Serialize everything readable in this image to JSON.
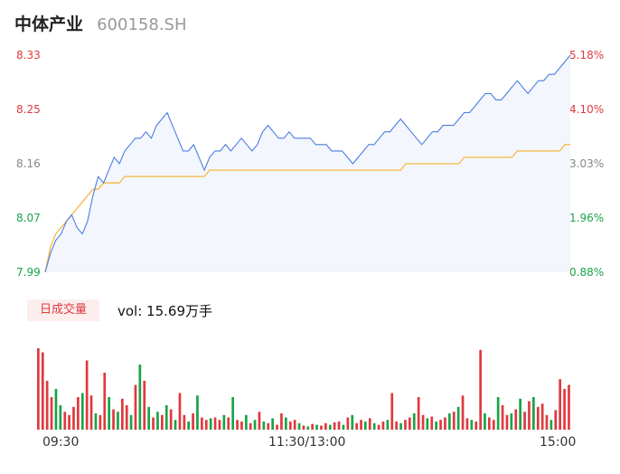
{
  "header": {
    "name": "中体产业",
    "code": "600158.SH"
  },
  "volume_panel": {
    "tab_label": "日成交量",
    "vol_label": "vol: 15.69万手"
  },
  "colors": {
    "price": "#4a7de0",
    "avg": "#f5b942",
    "up": "#e0393e",
    "down": "#1aa34a",
    "neutral": "#888888",
    "fill": "#f3f6fd"
  },
  "chart_data": [
    {
      "type": "line",
      "title": "",
      "ylim": [
        7.99,
        8.33
      ],
      "y_ticks_left": [
        "8.33",
        "8.25",
        "8.16",
        "8.07",
        "7.99"
      ],
      "y_ticks_right": [
        "5.18%",
        "4.10%",
        "3.03%",
        "1.96%",
        "0.88%"
      ],
      "x_ticks": [
        "09:30",
        "11:30/13:00",
        "15:00"
      ],
      "series": [
        {
          "values": [
            7.99,
            8.02,
            8.04,
            8.05,
            8.07,
            8.08,
            8.06,
            8.05,
            8.07,
            8.11,
            8.14,
            8.13,
            8.15,
            8.17,
            8.16,
            8.18,
            8.19,
            8.2,
            8.2,
            8.21,
            8.2,
            8.22,
            8.23,
            8.24,
            8.22,
            8.2,
            8.18,
            8.18,
            8.19,
            8.17,
            8.15,
            8.17,
            8.18,
            8.18,
            8.19,
            8.18,
            8.19,
            8.2,
            8.19,
            8.18,
            8.19,
            8.21,
            8.22,
            8.21,
            8.2,
            8.2,
            8.21,
            8.2,
            8.2,
            8.2,
            8.2,
            8.19,
            8.19,
            8.19,
            8.18,
            8.18,
            8.18,
            8.17,
            8.16,
            8.17,
            8.18,
            8.19,
            8.19,
            8.2,
            8.21,
            8.21,
            8.22,
            8.23,
            8.22,
            8.21,
            8.2,
            8.19,
            8.2,
            8.21,
            8.21,
            8.22,
            8.22,
            8.22,
            8.23,
            8.24,
            8.24,
            8.25,
            8.26,
            8.27,
            8.27,
            8.26,
            8.26,
            8.27,
            8.28,
            8.29,
            8.28,
            8.27,
            8.28,
            8.29,
            8.29,
            8.3,
            8.3,
            8.31,
            8.32,
            8.33
          ]
        },
        {
          "values": [
            7.99,
            8.03,
            8.05,
            8.06,
            8.07,
            8.08,
            8.09,
            8.1,
            8.11,
            8.12,
            8.12,
            8.13,
            8.13,
            8.13,
            8.13,
            8.14,
            8.14,
            8.14,
            8.14,
            8.14,
            8.14,
            8.14,
            8.14,
            8.14,
            8.14,
            8.14,
            8.14,
            8.14,
            8.14,
            8.14,
            8.14,
            8.15,
            8.15,
            8.15,
            8.15,
            8.15,
            8.15,
            8.15,
            8.15,
            8.15,
            8.15,
            8.15,
            8.15,
            8.15,
            8.15,
            8.15,
            8.15,
            8.15,
            8.15,
            8.15,
            8.15,
            8.15,
            8.15,
            8.15,
            8.15,
            8.15,
            8.15,
            8.15,
            8.15,
            8.15,
            8.15,
            8.15,
            8.15,
            8.15,
            8.15,
            8.15,
            8.15,
            8.15,
            8.16,
            8.16,
            8.16,
            8.16,
            8.16,
            8.16,
            8.16,
            8.16,
            8.16,
            8.16,
            8.16,
            8.17,
            8.17,
            8.17,
            8.17,
            8.17,
            8.17,
            8.17,
            8.17,
            8.17,
            8.17,
            8.18,
            8.18,
            8.18,
            8.18,
            8.18,
            8.18,
            8.18,
            8.18,
            8.18,
            8.19,
            8.19
          ]
        }
      ]
    },
    {
      "type": "bar",
      "title": "",
      "values": [
        100,
        95,
        60,
        40,
        50,
        30,
        22,
        18,
        28,
        40,
        45,
        85,
        42,
        20,
        18,
        70,
        40,
        25,
        22,
        38,
        30,
        18,
        55,
        80,
        60,
        28,
        15,
        22,
        18,
        30,
        25,
        12,
        45,
        18,
        10,
        20,
        42,
        15,
        12,
        14,
        15,
        12,
        18,
        15,
        40,
        12,
        10,
        18,
        8,
        12,
        22,
        10,
        8,
        14,
        6,
        20,
        15,
        10,
        12,
        8,
        5,
        4,
        7,
        6,
        5,
        8,
        6,
        9,
        10,
        6,
        15,
        18,
        8,
        12,
        10,
        14,
        8,
        6,
        10,
        12,
        45,
        10,
        8,
        12,
        15,
        20,
        40,
        18,
        14,
        16,
        10,
        12,
        15,
        20,
        22,
        28,
        42,
        14,
        12,
        10,
        98,
        20,
        15,
        12,
        40,
        30,
        18,
        20,
        25,
        38,
        22,
        35,
        40,
        28,
        32,
        18,
        12,
        24,
        62,
        50,
        55
      ],
      "colors": [
        "up",
        "up",
        "up",
        "up",
        "down",
        "down",
        "up",
        "up",
        "up",
        "up",
        "down",
        "up",
        "up",
        "down",
        "up",
        "up",
        "down",
        "up",
        "down",
        "up",
        "up",
        "down",
        "up",
        "down",
        "up",
        "down",
        "up",
        "down",
        "up",
        "down",
        "up",
        "down",
        "up",
        "up",
        "down",
        "up",
        "down",
        "up",
        "up",
        "down",
        "up",
        "up",
        "down",
        "up",
        "down",
        "up",
        "up",
        "down",
        "up",
        "down",
        "up",
        "down",
        "up",
        "down",
        "up",
        "up",
        "down",
        "up",
        "up",
        "down",
        "up",
        "down",
        "up",
        "down",
        "up",
        "up",
        "down",
        "up",
        "up",
        "down",
        "up",
        "down",
        "up",
        "up",
        "down",
        "up",
        "down",
        "up",
        "up",
        "down",
        "up",
        "up",
        "down",
        "up",
        "up",
        "down",
        "up",
        "up",
        "down",
        "up",
        "down",
        "up",
        "up",
        "down",
        "up",
        "down",
        "up",
        "up",
        "down",
        "up",
        "up",
        "down",
        "up",
        "up",
        "down",
        "up",
        "up",
        "down",
        "up",
        "down",
        "up",
        "up",
        "down",
        "up",
        "up",
        "up",
        "down",
        "up",
        "up",
        "up",
        "up"
      ]
    }
  ]
}
